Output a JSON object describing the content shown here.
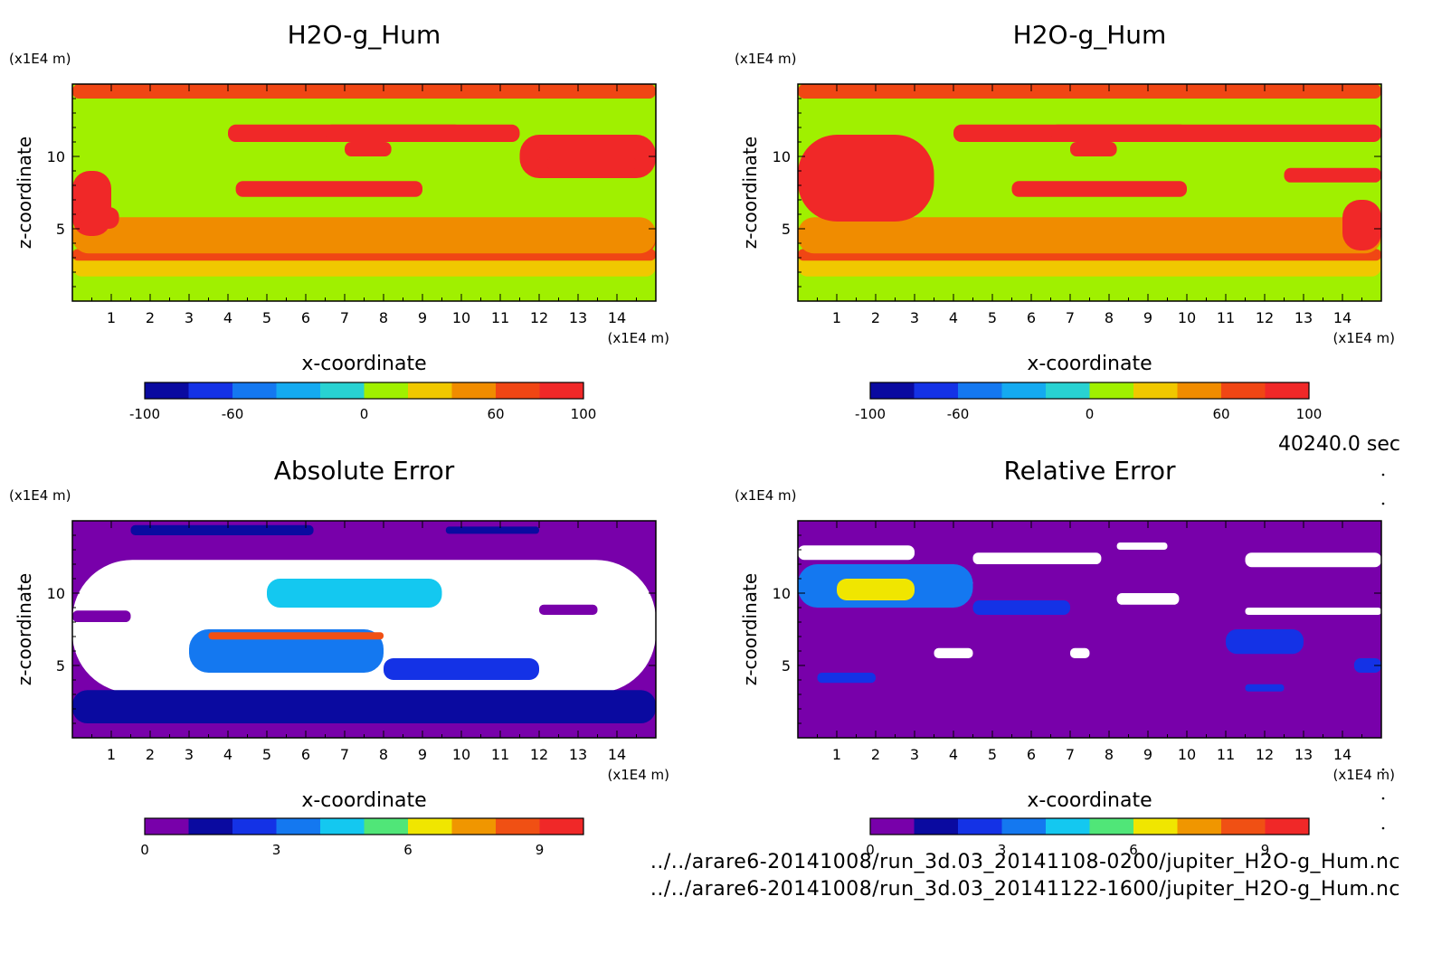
{
  "figure": {
    "time_label": "40240.0 sec",
    "footer_files": [
      "../../arare6-20141008/run_3d.03_20141108-0200/jupiter_H2O-g_Hum.nc",
      "../../arare6-20141008/run_3d.03_20141122-1600/jupiter_H2O-g_Hum.nc"
    ]
  },
  "chart_data": [
    {
      "type": "heatmap",
      "title": "H2O-g_Hum",
      "xlabel": "x-coordinate",
      "ylabel": "z-coordinate",
      "x_unit": "(x1E4 m)",
      "y_unit": "(x1E4 m)",
      "xlim": [
        0,
        15
      ],
      "ylim": [
        0,
        15
      ],
      "x_ticks": [
        1,
        2,
        3,
        4,
        5,
        6,
        7,
        8,
        9,
        10,
        11,
        12,
        13,
        14
      ],
      "y_ticks": [
        5,
        10
      ],
      "colorbar": {
        "levels": [
          -100,
          -80,
          -60,
          -40,
          -20,
          0,
          20,
          40,
          60,
          80,
          100
        ],
        "tick_labels": [
          "-100",
          "-60",
          "0",
          "60",
          "100"
        ],
        "tick_values": [
          -100,
          -60,
          0,
          60,
          100
        ],
        "colors": [
          "#0a0aa0",
          "#1432e6",
          "#1478f0",
          "#14aaf0",
          "#28d2d2",
          "#a0f000",
          "#f0c800",
          "#f08c00",
          "#f04614",
          "#f02828"
        ]
      },
      "background_value": 10,
      "regions": [
        {
          "value": 70,
          "x": [
            0,
            15
          ],
          "z": [
            14,
            15
          ]
        },
        {
          "value": 35,
          "x": [
            0,
            15
          ],
          "z": [
            1.7,
            3.2
          ]
        },
        {
          "value": 65,
          "x": [
            0,
            15
          ],
          "z": [
            2.8,
            3.6
          ]
        },
        {
          "value": 75,
          "x": [
            1,
            11
          ],
          "z": [
            3,
            3.5
          ]
        },
        {
          "value": 65,
          "x": [
            2.5,
            6.5
          ],
          "z": [
            3.3,
            5.5
          ]
        },
        {
          "value": 60,
          "x": [
            11,
            15
          ],
          "z": [
            3.2,
            5.5
          ]
        },
        {
          "value": 70,
          "x": [
            12,
            14.5
          ],
          "z": [
            3.5,
            5
          ]
        },
        {
          "value": 45,
          "x": [
            0,
            15
          ],
          "z": [
            3.3,
            5.8
          ]
        },
        {
          "value": 85,
          "x": [
            0,
            1
          ],
          "z": [
            4.5,
            9
          ]
        },
        {
          "value": 95,
          "x": [
            0.2,
            1.2
          ],
          "z": [
            5,
            6.5
          ]
        },
        {
          "value": 85,
          "x": [
            4.2,
            9
          ],
          "z": [
            7.2,
            8.3
          ]
        },
        {
          "value": 85,
          "x": [
            11.5,
            15
          ],
          "z": [
            8.5,
            11.5
          ]
        },
        {
          "value": 95,
          "x": [
            12.2,
            14.5
          ],
          "z": [
            9,
            10
          ]
        },
        {
          "value": 85,
          "x": [
            4,
            11.5
          ],
          "z": [
            11,
            12.2
          ]
        },
        {
          "value": 95,
          "x": [
            6.5,
            10
          ],
          "z": [
            11.2,
            12.2
          ]
        },
        {
          "value": 95,
          "x": [
            7,
            8.2
          ],
          "z": [
            10,
            11
          ]
        }
      ]
    },
    {
      "type": "heatmap",
      "title": "H2O-g_Hum",
      "xlabel": "x-coordinate",
      "ylabel": "z-coordinate",
      "x_unit": "(x1E4 m)",
      "y_unit": "(x1E4 m)",
      "xlim": [
        0,
        15
      ],
      "ylim": [
        0,
        15
      ],
      "x_ticks": [
        1,
        2,
        3,
        4,
        5,
        6,
        7,
        8,
        9,
        10,
        11,
        12,
        13,
        14
      ],
      "y_ticks": [
        5,
        10
      ],
      "colorbar": {
        "levels": [
          -100,
          -80,
          -60,
          -40,
          -20,
          0,
          20,
          40,
          60,
          80,
          100
        ],
        "tick_labels": [
          "-100",
          "-60",
          "0",
          "60",
          "100"
        ],
        "tick_values": [
          -100,
          -60,
          0,
          60,
          100
        ],
        "colors": [
          "#0a0aa0",
          "#1432e6",
          "#1478f0",
          "#14aaf0",
          "#28d2d2",
          "#a0f000",
          "#f0c800",
          "#f08c00",
          "#f04614",
          "#f02828"
        ]
      },
      "background_value": 10,
      "regions": [
        {
          "value": 70,
          "x": [
            0,
            15
          ],
          "z": [
            14,
            15
          ]
        },
        {
          "value": 35,
          "x": [
            0,
            15
          ],
          "z": [
            1.7,
            3.2
          ]
        },
        {
          "value": 65,
          "x": [
            0,
            15
          ],
          "z": [
            2.8,
            3.6
          ]
        },
        {
          "value": 75,
          "x": [
            0.5,
            6
          ],
          "z": [
            3,
            3.5
          ]
        },
        {
          "value": 65,
          "x": [
            4,
            7
          ],
          "z": [
            3.3,
            5.5
          ]
        },
        {
          "value": 60,
          "x": [
            10.5,
            14
          ],
          "z": [
            3.2,
            5.5
          ]
        },
        {
          "value": 70,
          "x": [
            11,
            13.5
          ],
          "z": [
            3.5,
            5
          ]
        },
        {
          "value": 45,
          "x": [
            0,
            15
          ],
          "z": [
            3.3,
            5.8
          ]
        },
        {
          "value": 85,
          "x": [
            0,
            3.5
          ],
          "z": [
            5.5,
            11.5
          ]
        },
        {
          "value": 95,
          "x": [
            1,
            3
          ],
          "z": [
            9,
            10
          ]
        },
        {
          "value": 85,
          "x": [
            5.5,
            10
          ],
          "z": [
            7.2,
            8.3
          ]
        },
        {
          "value": 85,
          "x": [
            14,
            15
          ],
          "z": [
            3.5,
            7
          ]
        },
        {
          "value": 85,
          "x": [
            12.5,
            15
          ],
          "z": [
            8.2,
            9.2
          ]
        },
        {
          "value": 85,
          "x": [
            4,
            15
          ],
          "z": [
            11,
            12.2
          ]
        },
        {
          "value": 95,
          "x": [
            6.5,
            10
          ],
          "z": [
            11.2,
            12.2
          ]
        },
        {
          "value": 95,
          "x": [
            7,
            8.2
          ],
          "z": [
            10,
            11
          ]
        }
      ]
    },
    {
      "type": "heatmap",
      "title": "Absolute Error",
      "xlabel": "x-coordinate",
      "ylabel": "z-coordinate",
      "x_unit": "(x1E4 m)",
      "y_unit": "(x1E4 m)",
      "xlim": [
        0,
        15
      ],
      "ylim": [
        0,
        15
      ],
      "x_ticks": [
        1,
        2,
        3,
        4,
        5,
        6,
        7,
        8,
        9,
        10,
        11,
        12,
        13,
        14
      ],
      "y_ticks": [
        5,
        10
      ],
      "colorbar": {
        "levels": [
          0,
          1,
          2,
          3,
          4,
          5,
          6,
          7,
          8,
          9,
          10
        ],
        "tick_labels": [
          "0",
          "3",
          "6",
          "9"
        ],
        "tick_values": [
          0,
          3,
          6,
          9
        ],
        "colors": [
          "#7800aa",
          "#0a0aa0",
          "#1432e6",
          "#1478f0",
          "#14c8f0",
          "#50e678",
          "#f0e600",
          "#f09600",
          "#f05014",
          "#f02828"
        ]
      },
      "background_value": 0.5,
      "overflow_color": "#ffffff",
      "regions": [
        {
          "value": 1.5,
          "x": [
            1.5,
            6.2
          ],
          "z": [
            14,
            14.7
          ]
        },
        {
          "value": 1.5,
          "x": [
            9.6,
            12
          ],
          "z": [
            14.1,
            14.6
          ]
        },
        {
          "value": 11,
          "x": [
            0,
            15
          ],
          "z": [
            3.1,
            12.3
          ]
        },
        {
          "value": 1.5,
          "x": [
            0,
            15
          ],
          "z": [
            1,
            3.3
          ]
        },
        {
          "value": 3.5,
          "x": [
            3,
            8
          ],
          "z": [
            4.5,
            7.5
          ]
        },
        {
          "value": 2.5,
          "x": [
            8,
            12
          ],
          "z": [
            4,
            5.5
          ]
        },
        {
          "value": 4.5,
          "x": [
            5,
            9.5
          ],
          "z": [
            9,
            11
          ]
        },
        {
          "value": 0.5,
          "x": [
            0,
            1.5
          ],
          "z": [
            8,
            8.8
          ]
        },
        {
          "value": 0.5,
          "x": [
            12,
            13.5
          ],
          "z": [
            8.5,
            9.2
          ]
        },
        {
          "value": 8.5,
          "x": [
            3.5,
            8
          ],
          "z": [
            6.8,
            7.3
          ]
        }
      ]
    },
    {
      "type": "heatmap",
      "title": "Relative Error",
      "xlabel": "x-coordinate",
      "ylabel": "z-coordinate",
      "x_unit": "(x1E4 m)",
      "y_unit": "(x1E4 m)",
      "xlim": [
        0,
        15
      ],
      "ylim": [
        0,
        15
      ],
      "x_ticks": [
        1,
        2,
        3,
        4,
        5,
        6,
        7,
        8,
        9,
        10,
        11,
        12,
        13,
        14
      ],
      "y_ticks": [
        5,
        10
      ],
      "colorbar": {
        "levels": [
          0,
          1,
          2,
          3,
          4,
          5,
          6,
          7,
          8,
          9,
          10
        ],
        "tick_labels": [
          "0",
          "3",
          "6",
          "9"
        ],
        "tick_values": [
          0,
          3,
          6,
          9
        ],
        "colors": [
          "#7800aa",
          "#0a0aa0",
          "#1432e6",
          "#1478f0",
          "#14c8f0",
          "#50e678",
          "#f0e600",
          "#f09600",
          "#f05014",
          "#f02828"
        ]
      },
      "background_value": 0.5,
      "overflow_color": "#ffffff",
      "regions": [
        {
          "value": 11,
          "x": [
            0,
            3
          ],
          "z": [
            12.3,
            13.3
          ]
        },
        {
          "value": 11,
          "x": [
            4.5,
            7.8
          ],
          "z": [
            12,
            12.8
          ]
        },
        {
          "value": 11,
          "x": [
            11.5,
            15
          ],
          "z": [
            11.8,
            12.8
          ]
        },
        {
          "value": 11,
          "x": [
            3,
            4.5
          ],
          "z": [
            10.2,
            11
          ]
        },
        {
          "value": 11,
          "x": [
            8.2,
            9.8
          ],
          "z": [
            9.2,
            10
          ]
        },
        {
          "value": 11,
          "x": [
            8.2,
            9.5
          ],
          "z": [
            13,
            13.5
          ]
        },
        {
          "value": 11,
          "x": [
            11.5,
            15
          ],
          "z": [
            8.5,
            9
          ]
        },
        {
          "value": 3.5,
          "x": [
            0,
            4.5
          ],
          "z": [
            9,
            12
          ]
        },
        {
          "value": 6.5,
          "x": [
            1,
            3
          ],
          "z": [
            9.5,
            11
          ]
        },
        {
          "value": 2.5,
          "x": [
            4.5,
            7
          ],
          "z": [
            8.5,
            9.5
          ]
        },
        {
          "value": 2.5,
          "x": [
            0.5,
            2
          ],
          "z": [
            3.8,
            4.5
          ]
        },
        {
          "value": 2.5,
          "x": [
            11,
            13
          ],
          "z": [
            5.8,
            7.5
          ]
        },
        {
          "value": 2.5,
          "x": [
            11.5,
            12.5
          ],
          "z": [
            3.2,
            3.7
          ]
        },
        {
          "value": 2.5,
          "x": [
            14.3,
            15
          ],
          "z": [
            4.5,
            5.5
          ]
        },
        {
          "value": 11,
          "x": [
            3.5,
            4.5
          ],
          "z": [
            5.5,
            6.2
          ]
        },
        {
          "value": 11,
          "x": [
            7,
            7.5
          ],
          "z": [
            5.5,
            6.2
          ]
        }
      ]
    }
  ]
}
